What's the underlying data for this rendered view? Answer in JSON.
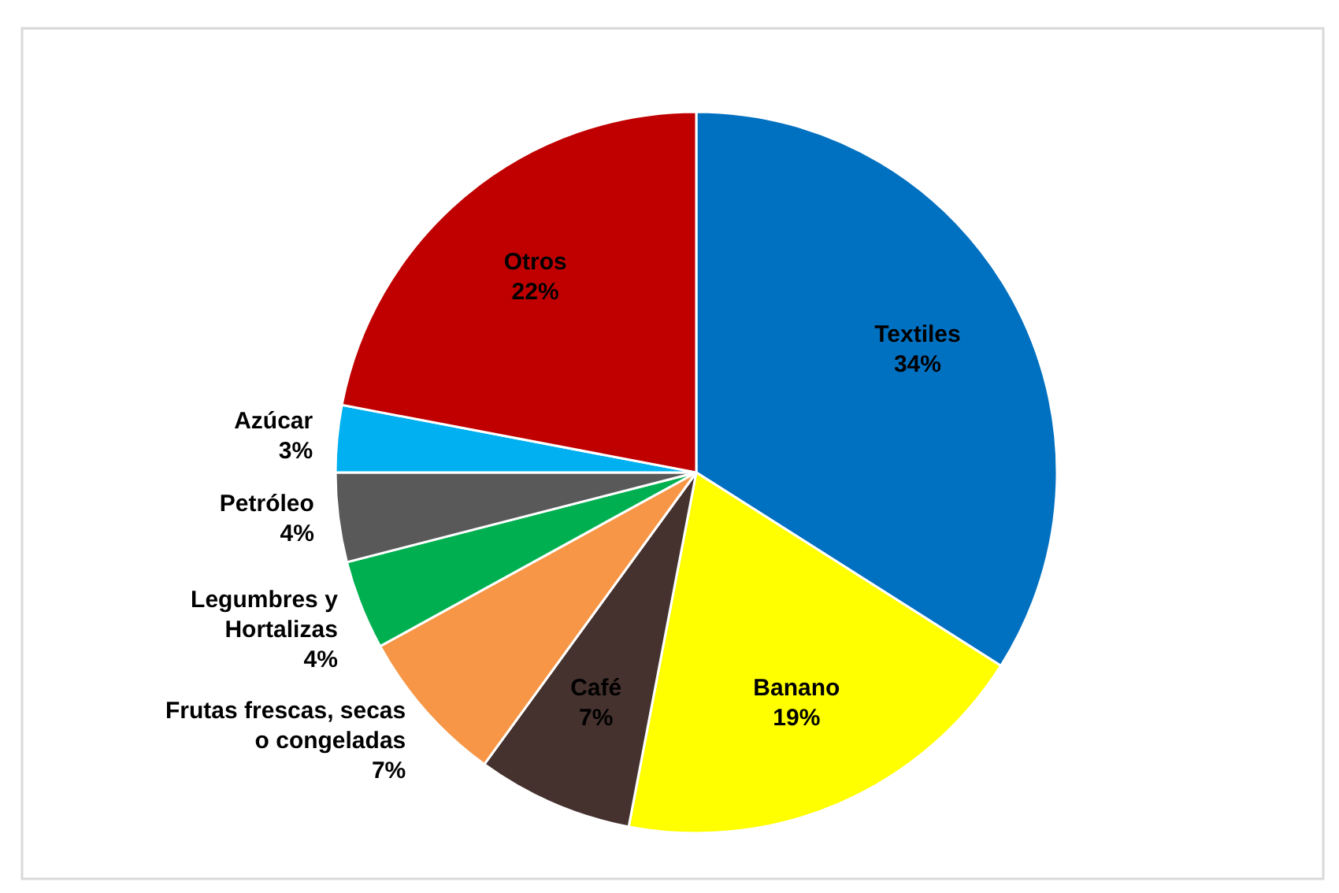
{
  "chart_data": {
    "type": "pie",
    "categories": [
      "Textiles",
      "Banano",
      "Café",
      "Frutas frescas, secas o congeladas",
      "Legumbres y Hortalizas",
      "Petróleo",
      "Azúcar",
      "Otros"
    ],
    "values": [
      34,
      19,
      7,
      7,
      4,
      4,
      3,
      22
    ],
    "value_labels": [
      "34%",
      "19%",
      "7%",
      "7%",
      "4%",
      "4%",
      "3%",
      "22%"
    ],
    "colors": [
      "#0070c0",
      "#ffff00",
      "#45322e",
      "#f79646",
      "#00b050",
      "#595959",
      "#00b0f0",
      "#c00000"
    ]
  }
}
